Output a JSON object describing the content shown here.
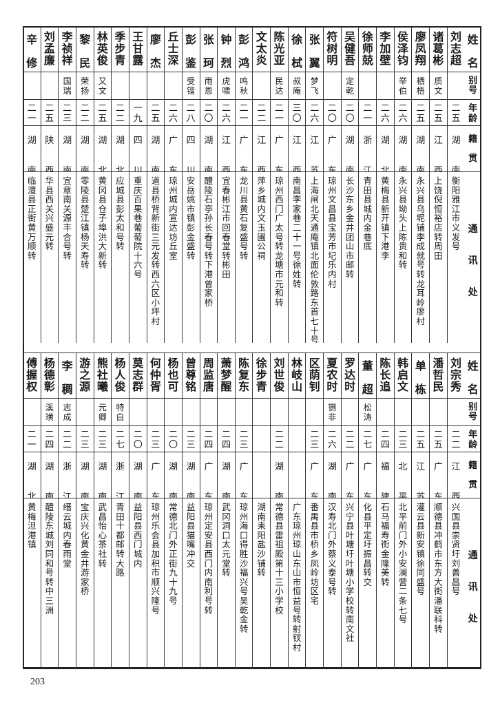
{
  "header": {
    "name": "姓名",
    "alias": "别号",
    "age": "年龄",
    "native": "籍贯",
    "address": "通讯处"
  },
  "top": {
    "rows": [
      {
        "name": "刘志超",
        "alias": "",
        "age": "二五",
        "native": "湖南",
        "address": "衡阳雅江市义发号"
      },
      {
        "name": "诸葛彬",
        "alias": "质文",
        "age": "二五",
        "native": "江西",
        "address": "上饶倪恒裕店转周田"
      },
      {
        "name": "廖凤翔",
        "alias": "栖梧",
        "age": "二五",
        "native": "湖南",
        "address": "永兴县乌坭铺李成就号转龙耳岭廖村"
      },
      {
        "name": "侯泽钧",
        "alias": "举伯",
        "age": "二六",
        "native": "湖南",
        "address": "永兴县坳头上陈贵和转"
      },
      {
        "name": "李加壁",
        "alias": "",
        "age": "二六",
        "native": "湖北",
        "address": "黄梅县新开镇下港李"
      },
      {
        "name": "徐师兢",
        "alias": "",
        "age": "二一",
        "native": "浙江",
        "address": "青田县城内金巷底"
      },
      {
        "name": "吴健吾",
        "alias": "定乾",
        "age": "二〇",
        "native": "湖南",
        "address": "长沙东乡金井团山市邮转"
      },
      {
        "name": "符树明",
        "alias": "",
        "age": "二〇",
        "native": "广东",
        "address": "琼州文昌县宝芳市圮乐内村"
      },
      {
        "name": "张翼",
        "alias": "梦飞",
        "age": "二六",
        "native": "江苏",
        "address": "上海闸北天通庵镇北面伦敦路东首七十号"
      },
      {
        "name": "徐栻",
        "alias": "叔庵",
        "age": "三〇",
        "native": "江西",
        "address": "南昌李家巷二十一号徐姓转"
      },
      {
        "name": "陈光亚",
        "alias": "民达",
        "age": "二一",
        "native": "广东",
        "address": "琼州西门广太号转龙塘市元和转"
      },
      {
        "name": "文太炎",
        "alias": "",
        "age": "二二",
        "native": "江西",
        "address": "萍乡城内文玉圃公祠"
      },
      {
        "name": "彭鸿",
        "alias": "鸣秋",
        "age": "二一",
        "native": "广东",
        "address": "龙川县黄石复盛号转"
      },
      {
        "name": "钟烈",
        "alias": "虎啸",
        "age": "二六",
        "native": "江西",
        "address": "宜春彬江市回春堂转彬田"
      },
      {
        "name": "张珂",
        "alias": "雨恩",
        "age": "二〇",
        "native": "湖南",
        "address": "醴陵石亭孙长春号转下港曾家桥"
      },
      {
        "name": "彭鉴",
        "alias": "受锴",
        "age": "二八",
        "native": "四川",
        "address": "安岳姚市镇彭金盛转"
      },
      {
        "name": "丘士深",
        "alias": "",
        "age": "二六",
        "native": "广东",
        "address": "琼州城内宣达坊丘室"
      },
      {
        "name": "廖杰",
        "alias": "",
        "age": "二五",
        "native": "湖南",
        "address": "道县桥背新街三元发转西六区小坪村"
      },
      {
        "name": "王甘露",
        "alias": "",
        "age": "一九",
        "native": "四川",
        "address": "重庆百果巷葡萄院十六号"
      },
      {
        "name": "季步青",
        "alias": "",
        "age": "二二",
        "native": "湖北",
        "address": "应城县彭太和号转"
      },
      {
        "name": "林英俊",
        "alias": "又文",
        "age": "二五",
        "native": "湖北",
        "address": "黄冈县仓子埠洪大新转"
      },
      {
        "name": "黎民",
        "alias": "荣扬",
        "age": "二二",
        "native": "湖南",
        "address": "零陵县楚江镇杨天寿转"
      },
      {
        "name": "李祯祥",
        "alias": "国瑞",
        "age": "二三",
        "native": "湖南",
        "address": "宜章南关源丰合号转"
      },
      {
        "name": "刘孟廉",
        "alias": "",
        "age": "二五",
        "native": "陕西",
        "address": "华县西关兴盛元转"
      },
      {
        "name": "辛修",
        "alias": "",
        "age": "二一",
        "native": "湖南",
        "address": "临澧县正街黄万顺转"
      }
    ]
  },
  "bottom": {
    "rows": [
      {
        "name": "刘宗秀",
        "alias": "",
        "age": "二二",
        "native": "江西",
        "address": "兴国县崇贤圩刘善昌号"
      },
      {
        "name": "潘哲民",
        "alias": "",
        "age": "二五",
        "native": "广东",
        "address": "顺德县冲鹤市东方大街潘联科转"
      },
      {
        "name": "单栋",
        "alias": "",
        "age": "二五",
        "native": "江苏",
        "address": "灌云县新安镇徐同盛号"
      },
      {
        "name": "韩启文",
        "alias": "",
        "age": "二三",
        "native": "北平",
        "address": "北平前门外小安澜营二条七号"
      },
      {
        "name": "陈长追",
        "alias": "",
        "age": "二四",
        "native": "福建",
        "address": "石马福寿街金隆美转"
      },
      {
        "name": "董超",
        "alias": "松涛",
        "age": "二七",
        "native": "广东",
        "address": "化县平定圩振昌转交"
      },
      {
        "name": "罗达时",
        "alias": "",
        "age": "二二",
        "native": "广东",
        "address": "兴宁县叶塘圩叶塘小学校转南文社"
      },
      {
        "name": "夏农时",
        "alias": "铏非",
        "age": "二六",
        "native": "湖南",
        "address": "汉寿北门外蔡义泰号转"
      },
      {
        "name": "区荫钊",
        "alias": "",
        "age": "二三",
        "native": "广东",
        "address": "番禺县市桥乡凤岭坊区宅"
      },
      {
        "name": "林岐山",
        "alias": "",
        "age": "",
        "native": "",
        "address": "广东琼州琼山东山市恒益号转射钗村"
      },
      {
        "name": "刘世俊",
        "alias": "",
        "age": "二二",
        "native": "湖南",
        "address": "常德县雷祖殿第十三小学校"
      },
      {
        "name": "徐步青",
        "alias": "",
        "age": "",
        "native": "",
        "address": "湖南耒阳盐沙铺转"
      },
      {
        "name": "陈复东",
        "alias": "",
        "age": "二三",
        "native": "广东",
        "address": "琼州海口得胜沙福兴号吴乾金转"
      },
      {
        "name": "萧梦醒",
        "alias": "",
        "age": "二四",
        "native": "湖南",
        "address": "武冈洞口太元堂转"
      },
      {
        "name": "周监唐",
        "alias": "",
        "age": "二四",
        "native": "广东",
        "address": "琼州定安县西门内南利号转"
      },
      {
        "name": "曾尊铭",
        "alias": "",
        "age": "二三",
        "native": "湖南",
        "address": "益阳县猫嘴冲交"
      },
      {
        "name": "杨也可",
        "alias": "",
        "age": "二〇",
        "native": "湖南",
        "address": "常德北门外正街九十九号"
      },
      {
        "name": "何仲胥",
        "alias": "",
        "age": "二三",
        "native": "广东",
        "address": "琼州乐会县加积市顺兴隆号"
      },
      {
        "name": "莫志群",
        "alias": "",
        "age": "二〇",
        "native": "湖南",
        "address": "益阳县西门城内"
      },
      {
        "name": "杨人俊",
        "alias": "特白",
        "age": "二七",
        "native": "浙江",
        "address": "青田十都邮转大路"
      },
      {
        "name": "熊社曦",
        "alias": "元卿",
        "age": "二三",
        "native": "湖南",
        "address": "武昌怡心茶社转"
      },
      {
        "name": "游之源",
        "alias": "",
        "age": "二三",
        "native": "湖南",
        "address": "宝庆兴化黄金井游家桥"
      },
      {
        "name": "李稠",
        "alias": "志成",
        "age": "二二",
        "native": "浙江",
        "address": "缙云城内春雨堂"
      },
      {
        "name": "杨德彰",
        "alias": "溪璜",
        "age": "二四",
        "native": "湖南",
        "address": "醴陵东城刘同和号转中三洲"
      },
      {
        "name": "傅握权",
        "alias": "",
        "age": "二一",
        "native": "湖北",
        "address": "黄梅泹港镇"
      }
    ]
  },
  "page_number": "203"
}
